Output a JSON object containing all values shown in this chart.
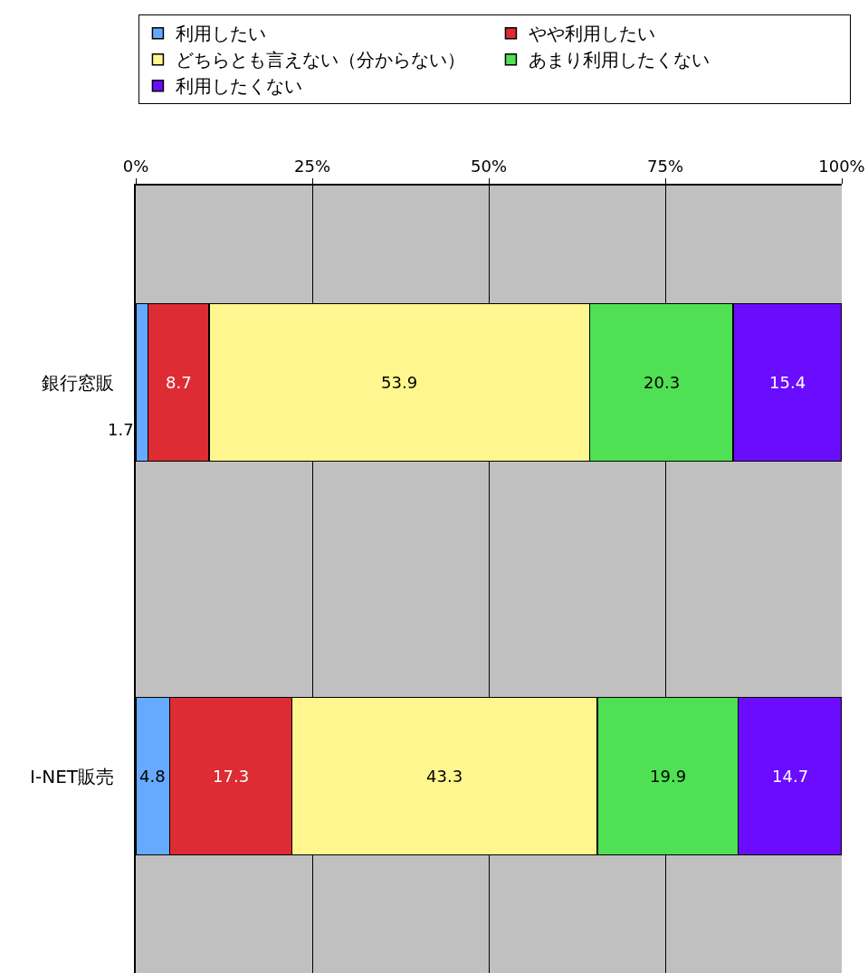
{
  "chart_data": {
    "type": "bar",
    "orientation": "horizontal",
    "stacked": true,
    "categories": [
      "銀行窓販",
      "I-NET販売"
    ],
    "series": [
      {
        "name": "利用したい",
        "color": "#66aaff",
        "values": [
          1.7,
          4.8
        ]
      },
      {
        "name": "やや利用したい",
        "color": "#dd2c33",
        "values": [
          8.7,
          17.3
        ]
      },
      {
        "name": "どちらとも言えない（分からない）",
        "color": "#fff68f",
        "values": [
          53.9,
          43.3
        ]
      },
      {
        "name": "あまり利用したくない",
        "color": "#4fe053",
        "values": [
          20.3,
          19.9
        ]
      },
      {
        "name": "利用したくない",
        "color": "#6a0dff",
        "values": [
          15.4,
          14.7
        ]
      }
    ],
    "xlim": [
      0,
      100
    ],
    "xticks": [
      {
        "value": 0,
        "label": "0%"
      },
      {
        "value": 25,
        "label": "25%"
      },
      {
        "value": 50,
        "label": "50%"
      },
      {
        "value": 75,
        "label": "75%"
      },
      {
        "value": 100,
        "label": "100%"
      }
    ],
    "data_labels": true,
    "grid": "x",
    "legend": "top"
  }
}
